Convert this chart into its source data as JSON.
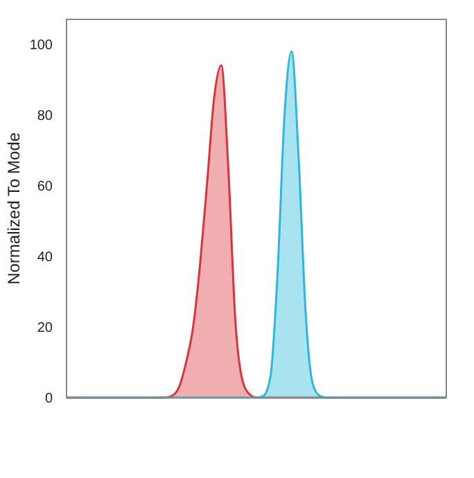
{
  "chart_data": {
    "type": "area",
    "ylabel": "Normalized To Mode",
    "categories": [
      null,
      null,
      null,
      null,
      null,
      null,
      null,
      null,
      null,
      null,
      null,
      null,
      null,
      null,
      null,
      null,
      null,
      null,
      null,
      null,
      null,
      null,
      null,
      null,
      null,
      null,
      null,
      null,
      null,
      null,
      null,
      null,
      null,
      null,
      null,
      null,
      null,
      null,
      null,
      null,
      null,
      null,
      null,
      null,
      null,
      null,
      null,
      null,
      null,
      null,
      null,
      null,
      null,
      null,
      null
    ],
    "series": [
      {
        "color": "#d9343a",
        "values": [
          0,
          0,
          0,
          0,
          0,
          0,
          0,
          0,
          0,
          0,
          0,
          0,
          0,
          0,
          0,
          0.5,
          3,
          10,
          20,
          38,
          61,
          85,
          94,
          65,
          22,
          5,
          1,
          0,
          0,
          0,
          0,
          0,
          0,
          0,
          0,
          0,
          0,
          0,
          0,
          0,
          0,
          0,
          0,
          0,
          0,
          0,
          0,
          0,
          0,
          0,
          0,
          0,
          0,
          0,
          0
        ]
      },
      {
        "color": "#2bb8d9",
        "values": [
          0,
          0,
          0,
          0,
          0,
          0,
          0,
          0,
          0,
          0,
          0,
          0,
          0,
          0,
          0,
          0,
          0,
          0,
          0,
          0,
          0,
          0,
          0,
          0,
          0,
          0,
          0,
          0,
          0.5,
          6,
          35,
          80,
          98,
          68,
          24,
          4,
          0.5,
          0,
          0,
          0,
          0,
          0,
          0,
          0,
          0,
          0,
          0,
          0,
          0,
          0,
          0,
          0,
          0,
          0,
          0
        ]
      }
    ],
    "ylim": [
      0,
      107
    ],
    "yticks": [
      0,
      20,
      40,
      60,
      80,
      100
    ],
    "tick_labels": "y",
    "grid": false
  }
}
